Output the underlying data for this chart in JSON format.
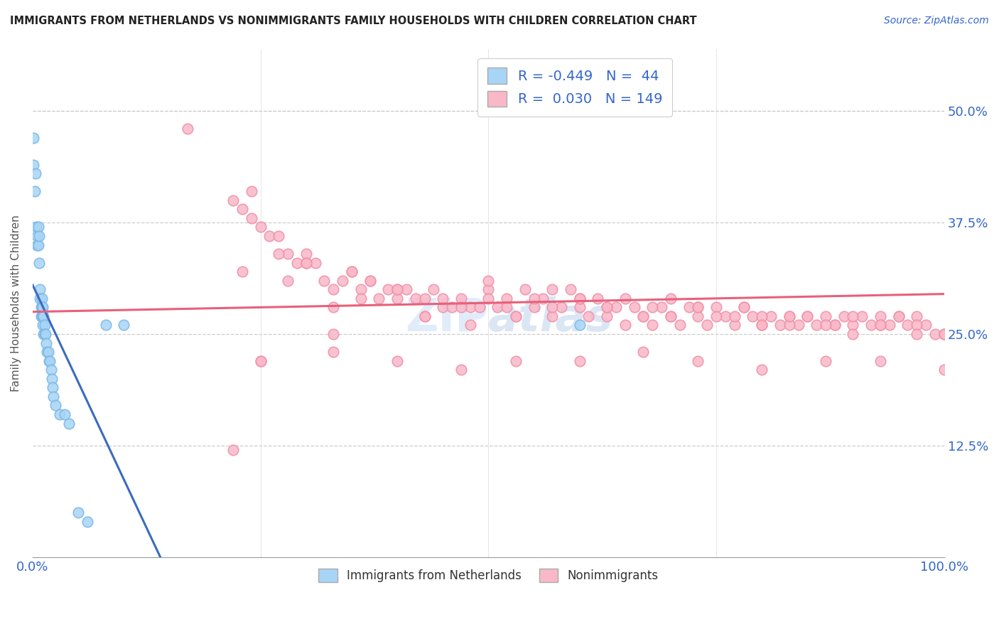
{
  "title": "IMMIGRANTS FROM NETHERLANDS VS NONIMMIGRANTS FAMILY HOUSEHOLDS WITH CHILDREN CORRELATION CHART",
  "source": "Source: ZipAtlas.com",
  "ylabel": "Family Households with Children",
  "legend_label1": "Immigrants from Netherlands",
  "legend_label2": "Nonimmigrants",
  "R1": -0.449,
  "N1": 44,
  "R2": 0.03,
  "N2": 149,
  "blue_color": "#a8d4f5",
  "blue_edge_color": "#7ab8e8",
  "blue_line_color": "#3a6bbf",
  "pink_color": "#f9b8c8",
  "pink_edge_color": "#f090a8",
  "pink_line_color": "#e8607a",
  "ytick_vals": [
    0.0,
    0.125,
    0.25,
    0.375,
    0.5
  ],
  "ytick_labels": [
    "",
    "12.5%",
    "25.0%",
    "37.5%",
    "50.0%"
  ],
  "xlim": [
    0,
    1.0
  ],
  "ylim": [
    0,
    0.57
  ],
  "blue_scatter_x": [
    0.001,
    0.001,
    0.002,
    0.003,
    0.004,
    0.005,
    0.005,
    0.006,
    0.006,
    0.007,
    0.007,
    0.008,
    0.008,
    0.009,
    0.009,
    0.01,
    0.01,
    0.01,
    0.011,
    0.011,
    0.011,
    0.012,
    0.012,
    0.013,
    0.013,
    0.014,
    0.015,
    0.016,
    0.017,
    0.018,
    0.019,
    0.02,
    0.021,
    0.022,
    0.023,
    0.025,
    0.03,
    0.035,
    0.04,
    0.05,
    0.06,
    0.08,
    0.1,
    0.6
  ],
  "blue_scatter_y": [
    0.47,
    0.44,
    0.41,
    0.43,
    0.37,
    0.36,
    0.35,
    0.37,
    0.35,
    0.36,
    0.33,
    0.3,
    0.29,
    0.28,
    0.27,
    0.29,
    0.28,
    0.27,
    0.28,
    0.27,
    0.26,
    0.27,
    0.25,
    0.26,
    0.25,
    0.25,
    0.24,
    0.23,
    0.23,
    0.22,
    0.22,
    0.21,
    0.2,
    0.19,
    0.18,
    0.17,
    0.16,
    0.16,
    0.15,
    0.05,
    0.04,
    0.26,
    0.26,
    0.26
  ],
  "blue_trend_x": [
    0.0,
    0.14
  ],
  "blue_trend_y": [
    0.305,
    0.0
  ],
  "pink_trend_x": [
    0.0,
    1.0
  ],
  "pink_trend_y": [
    0.275,
    0.295
  ],
  "pink_scatter_x": [
    0.17,
    0.22,
    0.23,
    0.24,
    0.25,
    0.26,
    0.27,
    0.28,
    0.29,
    0.3,
    0.31,
    0.32,
    0.33,
    0.34,
    0.35,
    0.36,
    0.37,
    0.38,
    0.39,
    0.4,
    0.41,
    0.42,
    0.43,
    0.44,
    0.45,
    0.46,
    0.47,
    0.48,
    0.49,
    0.5,
    0.51,
    0.52,
    0.53,
    0.54,
    0.55,
    0.56,
    0.57,
    0.58,
    0.59,
    0.6,
    0.61,
    0.62,
    0.63,
    0.64,
    0.65,
    0.66,
    0.67,
    0.68,
    0.69,
    0.7,
    0.71,
    0.72,
    0.73,
    0.74,
    0.75,
    0.76,
    0.77,
    0.78,
    0.79,
    0.8,
    0.81,
    0.82,
    0.83,
    0.84,
    0.85,
    0.86,
    0.87,
    0.88,
    0.89,
    0.9,
    0.91,
    0.92,
    0.93,
    0.94,
    0.95,
    0.96,
    0.97,
    0.98,
    0.99,
    1.0,
    0.23,
    0.25,
    0.28,
    0.3,
    0.33,
    0.35,
    0.37,
    0.4,
    0.43,
    0.45,
    0.48,
    0.5,
    0.52,
    0.55,
    0.57,
    0.6,
    0.63,
    0.65,
    0.68,
    0.7,
    0.73,
    0.75,
    0.78,
    0.8,
    0.83,
    0.85,
    0.88,
    0.9,
    0.93,
    0.95,
    0.97,
    1.0,
    0.24,
    0.27,
    0.3,
    0.33,
    0.36,
    0.4,
    0.43,
    0.47,
    0.5,
    0.53,
    0.57,
    0.6,
    0.63,
    0.67,
    0.7,
    0.73,
    0.77,
    0.8,
    0.83,
    0.87,
    0.9,
    0.93,
    0.97,
    1.0,
    0.22,
    0.25,
    0.33,
    0.4,
    0.47,
    0.53,
    0.6,
    0.67,
    0.73,
    0.8,
    0.87,
    0.93,
    1.0
  ],
  "pink_scatter_y": [
    0.48,
    0.4,
    0.39,
    0.38,
    0.37,
    0.36,
    0.36,
    0.34,
    0.33,
    0.34,
    0.33,
    0.31,
    0.3,
    0.31,
    0.32,
    0.3,
    0.31,
    0.29,
    0.3,
    0.29,
    0.3,
    0.29,
    0.29,
    0.3,
    0.28,
    0.28,
    0.29,
    0.28,
    0.28,
    0.3,
    0.28,
    0.29,
    0.27,
    0.3,
    0.28,
    0.29,
    0.27,
    0.28,
    0.3,
    0.28,
    0.27,
    0.29,
    0.27,
    0.28,
    0.26,
    0.28,
    0.27,
    0.26,
    0.28,
    0.27,
    0.26,
    0.28,
    0.27,
    0.26,
    0.28,
    0.27,
    0.26,
    0.28,
    0.27,
    0.26,
    0.27,
    0.26,
    0.27,
    0.26,
    0.27,
    0.26,
    0.27,
    0.26,
    0.27,
    0.26,
    0.27,
    0.26,
    0.27,
    0.26,
    0.27,
    0.26,
    0.27,
    0.26,
    0.25,
    0.25,
    0.32,
    0.22,
    0.31,
    0.33,
    0.25,
    0.32,
    0.31,
    0.3,
    0.27,
    0.29,
    0.26,
    0.31,
    0.28,
    0.29,
    0.3,
    0.29,
    0.28,
    0.29,
    0.28,
    0.29,
    0.28,
    0.27,
    0.28,
    0.27,
    0.26,
    0.27,
    0.26,
    0.27,
    0.26,
    0.27,
    0.26,
    0.25,
    0.41,
    0.34,
    0.33,
    0.28,
    0.29,
    0.3,
    0.27,
    0.28,
    0.29,
    0.27,
    0.28,
    0.29,
    0.28,
    0.27,
    0.27,
    0.28,
    0.27,
    0.26,
    0.27,
    0.26,
    0.25,
    0.26,
    0.25,
    0.25,
    0.12,
    0.22,
    0.23,
    0.22,
    0.21,
    0.22,
    0.22,
    0.23,
    0.22,
    0.21,
    0.22,
    0.22,
    0.21
  ]
}
